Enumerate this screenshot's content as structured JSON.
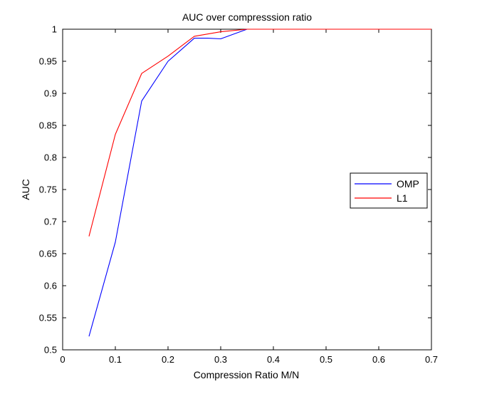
{
  "chart_data": {
    "type": "line",
    "title": "AUC over compresssion ratio",
    "xlabel": "Compression Ratio M/N",
    "ylabel": "AUC",
    "xlim": [
      0,
      0.7
    ],
    "ylim": [
      0.5,
      1
    ],
    "xticks": [
      "0",
      "0.1",
      "0.2",
      "0.3",
      "0.4",
      "0.5",
      "0.6",
      "0.7"
    ],
    "yticks": [
      "0.5",
      "0.55",
      "0.6",
      "0.65",
      "0.7",
      "0.75",
      "0.8",
      "0.85",
      "0.9",
      "0.95",
      "1"
    ],
    "grid": false,
    "legend_position": "right",
    "series": [
      {
        "name": "OMP",
        "color": "#0000ff",
        "x": [
          0.05,
          0.1,
          0.15,
          0.2,
          0.25,
          0.275,
          0.3,
          0.35,
          0.4,
          0.45,
          0.5,
          0.55,
          0.6,
          0.65,
          0.7
        ],
        "y": [
          0.521,
          0.668,
          0.888,
          0.95,
          0.986,
          0.986,
          0.985,
          1.0,
          1.0,
          1.0,
          1.0,
          1.0,
          1.0,
          1.0,
          1.0
        ]
      },
      {
        "name": "L1",
        "color": "#ff0000",
        "x": [
          0.05,
          0.1,
          0.15,
          0.2,
          0.25,
          0.3,
          0.35,
          0.4,
          0.45,
          0.5,
          0.55,
          0.6,
          0.65,
          0.7
        ],
        "y": [
          0.677,
          0.836,
          0.931,
          0.958,
          0.989,
          0.996,
          1.0,
          1.0,
          1.0,
          1.0,
          1.0,
          1.0,
          1.0,
          1.0
        ]
      }
    ]
  }
}
